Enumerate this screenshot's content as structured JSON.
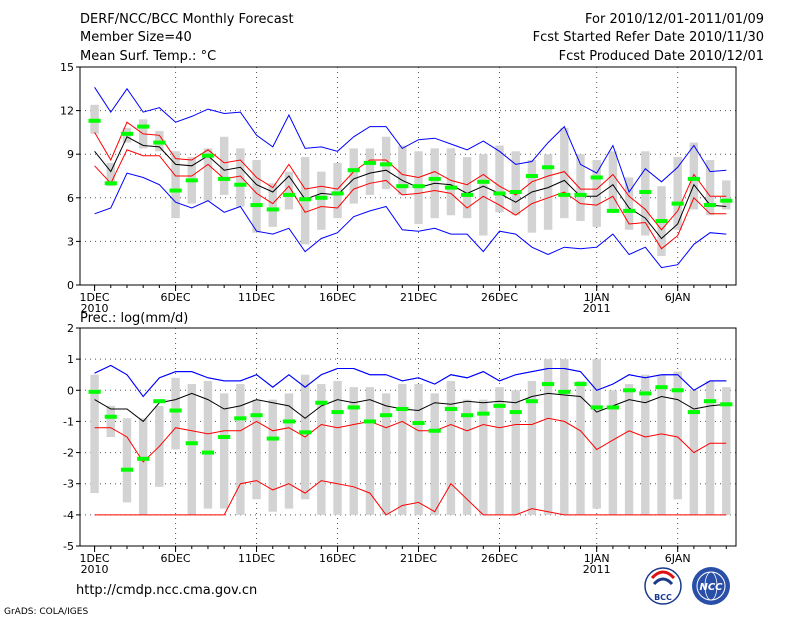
{
  "header": {
    "title": "DERF/NCC/BCC Monthly Forecast",
    "member_size": "Member Size=40",
    "period": "For 2010/12/01-2011/01/09",
    "fcst_started": "Fcst Started Refer Date 2010/11/30",
    "fcst_produced": "Fcst Produced Date 2010/12/01"
  },
  "footer": {
    "url": "http://cmdp.ncc.cma.gov.cn",
    "credit": "GrADS: COLA/IGES",
    "logo_bcc": "BCC",
    "logo_ncc": "NCC"
  },
  "colors": {
    "box": "#d3d3d3",
    "median": "#00ff00",
    "mean": "#000000",
    "spread": "#ff0000",
    "extreme": "#0000ff",
    "grid": "#555555"
  },
  "chart_data": [
    {
      "type": "box",
      "name": "temperature",
      "ylabel": "Mean Surf. Temp.: °C",
      "ylim": [
        0,
        15
      ],
      "yticks": [
        0,
        3,
        6,
        9,
        12,
        15
      ],
      "grid": true,
      "day_count": 40,
      "xtick_days": [
        1,
        6,
        11,
        16,
        21,
        26,
        32,
        37
      ],
      "xtick_labels": [
        "1DEC",
        "6DEC",
        "11DEC",
        "16DEC",
        "21DEC",
        "26DEC",
        "1JAN",
        "6JAN"
      ],
      "xtick_years": [
        {
          "day": 1,
          "label": "2010"
        },
        {
          "day": 32,
          "label": "2011"
        }
      ],
      "box_low": [
        10.4,
        6.8,
        9.8,
        9.4,
        9.2,
        4.6,
        5.6,
        5.8,
        6.2,
        5.4,
        3.6,
        4.0,
        5.2,
        2.8,
        3.8,
        4.6,
        5.6,
        6.2,
        6.6,
        6.2,
        4.2,
        4.6,
        4.8,
        4.6,
        3.4,
        5.0,
        4.8,
        3.6,
        3.8,
        4.6,
        4.4,
        4.0,
        5.2,
        3.8,
        3.4,
        2.0,
        3.8,
        5.2,
        4.8,
        5.2
      ],
      "box_high": [
        12.4,
        8.4,
        10.8,
        11.4,
        10.6,
        9.2,
        8.8,
        9.4,
        10.2,
        9.4,
        8.6,
        7.0,
        7.8,
        8.8,
        7.8,
        8.4,
        9.4,
        9.4,
        10.2,
        9.6,
        9.2,
        9.4,
        9.4,
        8.8,
        9.0,
        9.6,
        9.2,
        8.6,
        9.0,
        10.8,
        9.0,
        8.6,
        9.2,
        7.4,
        9.2,
        6.8,
        8.8,
        9.8,
        8.6,
        7.2
      ],
      "median": [
        11.3,
        7.0,
        10.4,
        10.9,
        9.8,
        6.5,
        7.2,
        8.9,
        7.3,
        6.9,
        5.5,
        5.2,
        6.2,
        5.9,
        6.0,
        6.3,
        7.9,
        8.4,
        8.3,
        6.8,
        6.8,
        7.3,
        6.7,
        6.2,
        7.1,
        6.3,
        6.4,
        7.5,
        8.1,
        6.2,
        6.2,
        7.4,
        5.1,
        5.1,
        6.4,
        4.4,
        5.6,
        7.3,
        5.5,
        5.8
      ],
      "mean": [
        9.2,
        7.8,
        10.2,
        9.6,
        9.5,
        8.3,
        8.2,
        8.9,
        7.9,
        8.1,
        6.9,
        6.4,
        7.5,
        5.9,
        6.3,
        6.2,
        7.3,
        7.7,
        7.9,
        7.2,
        6.7,
        7.0,
        6.9,
        6.3,
        6.8,
        6.3,
        5.7,
        6.4,
        6.7,
        7.2,
        6.1,
        6.1,
        6.9,
        5.3,
        4.6,
        3.2,
        4.2,
        6.9,
        5.5,
        5.4
      ],
      "upper": [
        10.5,
        8.6,
        11.2,
        10.4,
        10.3,
        8.7,
        8.6,
        9.3,
        8.4,
        8.6,
        7.4,
        6.7,
        8.3,
        6.6,
        6.8,
        6.6,
        7.8,
        8.6,
        8.6,
        7.6,
        7.4,
        7.8,
        7.2,
        6.9,
        7.6,
        6.8,
        6.2,
        7.1,
        7.5,
        7.8,
        6.6,
        6.6,
        7.6,
        6.1,
        5.2,
        3.8,
        5.1,
        7.6,
        6.1,
        6.1
      ],
      "lower": [
        8.2,
        7.0,
        9.3,
        8.9,
        8.9,
        7.5,
        7.5,
        8.3,
        7.3,
        7.5,
        6.3,
        5.6,
        6.8,
        5.0,
        5.4,
        5.3,
        6.6,
        7.0,
        7.2,
        6.2,
        6.3,
        6.5,
        6.3,
        5.3,
        6.1,
        5.5,
        4.8,
        5.6,
        6.0,
        6.4,
        5.6,
        5.5,
        6.1,
        4.2,
        4.3,
        2.5,
        3.4,
        6.0,
        4.9,
        4.9
      ],
      "max": [
        13.6,
        11.9,
        13.5,
        11.9,
        12.2,
        11.2,
        11.6,
        12.1,
        11.8,
        11.9,
        10.3,
        9.5,
        11.7,
        9.4,
        9.5,
        9.2,
        10.2,
        10.9,
        10.9,
        9.4,
        10.0,
        10.1,
        9.7,
        9.3,
        9.9,
        9.2,
        8.3,
        8.5,
        9.8,
        10.9,
        8.3,
        7.7,
        9.6,
        6.4,
        8.0,
        7.1,
        8.1,
        9.6,
        7.8,
        7.9
      ],
      "min": [
        4.9,
        5.3,
        7.7,
        7.4,
        6.9,
        5.7,
        5.3,
        5.8,
        5.0,
        5.4,
        3.7,
        3.5,
        3.9,
        2.3,
        3.2,
        3.6,
        4.7,
        5.1,
        5.4,
        3.8,
        3.7,
        3.9,
        3.5,
        3.5,
        2.3,
        3.7,
        3.5,
        2.6,
        2.1,
        2.6,
        2.5,
        2.6,
        3.5,
        2.1,
        2.6,
        1.2,
        1.4,
        2.8,
        3.6,
        3.5
      ]
    },
    {
      "type": "box",
      "name": "precipitation",
      "ylabel": "Prec.: log(mm/d)",
      "ylim": [
        -5,
        2
      ],
      "yticks": [
        -5,
        -4,
        -3,
        -2,
        -1,
        0,
        1,
        2
      ],
      "grid": true,
      "day_count": 40,
      "xtick_days": [
        1,
        6,
        11,
        16,
        21,
        26,
        32,
        37
      ],
      "xtick_labels": [
        "1DEC",
        "6DEC",
        "11DEC",
        "16DEC",
        "21DEC",
        "26DEC",
        "1JAN",
        "6JAN"
      ],
      "xtick_years": [
        {
          "day": 1,
          "label": "2010"
        },
        {
          "day": 32,
          "label": "2011"
        }
      ],
      "box_low": [
        -3.3,
        -1.5,
        -3.6,
        -4.0,
        -3.1,
        -1.9,
        -4.0,
        -3.8,
        -3.8,
        -4.0,
        -3.5,
        -3.9,
        -3.8,
        -3.5,
        -4.0,
        -4.0,
        -4.0,
        -4.0,
        -4.0,
        -4.0,
        -4.0,
        -4.0,
        -4.0,
        -4.0,
        -4.0,
        -4.0,
        -4.0,
        -4.0,
        -4.0,
        -4.0,
        -4.0,
        -3.8,
        -4.0,
        -4.0,
        -4.0,
        -4.0,
        -3.5,
        -4.0,
        -4.0,
        -4.0
      ],
      "box_high": [
        0.5,
        -0.5,
        -0.9,
        -0.9,
        -0.5,
        0.4,
        0.2,
        0.3,
        -0.1,
        0.2,
        -0.3,
        -0.3,
        -0.1,
        0.5,
        0.2,
        0.3,
        0.1,
        0.1,
        -0.1,
        0.2,
        0.2,
        -0.1,
        0.3,
        -0.3,
        -0.3,
        0.1,
        0.0,
        0.3,
        1.0,
        1.0,
        0.3,
        1.0,
        0.0,
        0.2,
        0.5,
        0.5,
        0.6,
        0.0,
        0.3,
        0.1
      ],
      "median": [
        -0.05,
        -0.85,
        -2.55,
        -2.2,
        -0.35,
        -0.65,
        -1.7,
        -2.0,
        -1.5,
        -0.9,
        -0.8,
        -1.55,
        -1.0,
        -1.35,
        -0.4,
        -0.7,
        -0.55,
        -1.0,
        -0.8,
        -0.6,
        -1.05,
        -1.3,
        -0.6,
        -0.8,
        -0.75,
        -0.5,
        -0.7,
        -0.35,
        0.2,
        -0.05,
        0.2,
        -0.55,
        -0.55,
        0.0,
        -0.1,
        0.1,
        0.0,
        -0.7,
        -0.35,
        -0.45
      ],
      "mean": [
        -0.3,
        -0.6,
        -0.6,
        -1.0,
        -0.4,
        -0.3,
        -0.1,
        -0.3,
        -0.6,
        -0.5,
        -0.3,
        -0.4,
        -0.5,
        -0.9,
        -0.5,
        -0.3,
        -0.4,
        -0.3,
        -0.5,
        -0.6,
        -0.65,
        -0.4,
        -0.45,
        -0.35,
        -0.4,
        -0.35,
        -0.4,
        -0.2,
        -0.1,
        -0.15,
        -0.2,
        -0.7,
        -0.5,
        -0.3,
        -0.4,
        -0.2,
        -0.3,
        -0.6,
        -0.5,
        -0.45
      ],
      "upper": [
        0.55,
        0.8,
        0.5,
        -0.2,
        0.4,
        0.6,
        0.6,
        0.4,
        0.3,
        0.3,
        0.5,
        0.1,
        0.5,
        0.1,
        0.5,
        0.7,
        0.7,
        0.5,
        0.5,
        0.3,
        0.4,
        0.2,
        0.5,
        0.4,
        0.6,
        0.3,
        0.5,
        0.6,
        0.7,
        0.7,
        0.6,
        0.0,
        0.2,
        0.5,
        0.4,
        0.5,
        0.5,
        0.0,
        0.3,
        0.3
      ],
      "lower": [
        -1.2,
        -1.2,
        -1.5,
        -2.3,
        -1.8,
        -1.2,
        -1.3,
        -1.4,
        -1.3,
        -1.3,
        -1.0,
        -1.3,
        -1.2,
        -1.5,
        -1.1,
        -1.2,
        -1.1,
        -1.0,
        -1.2,
        -1.0,
        -1.3,
        -1.3,
        -1.1,
        -1.3,
        -1.1,
        -1.2,
        -1.1,
        -1.1,
        -0.9,
        -1.0,
        -1.3,
        -1.9,
        -1.6,
        -1.3,
        -1.5,
        -1.4,
        -1.5,
        -2.0,
        -1.7,
        -1.7
      ],
      "min": [
        -4.0,
        -4.0,
        -4.0,
        -4.0,
        -4.0,
        -4.0,
        -4.0,
        -4.0,
        -4.0,
        -3.0,
        -2.9,
        -3.2,
        -3.0,
        -3.3,
        -2.9,
        -3.0,
        -3.1,
        -3.3,
        -4.0,
        -3.7,
        -3.6,
        -3.9,
        -3.0,
        -3.5,
        -4.0,
        -4.0,
        -4.0,
        -3.8,
        -3.9,
        -4.0,
        -4.0,
        -4.0,
        -4.0,
        -4.0,
        -4.0,
        -4.0,
        -4.0,
        -4.0,
        -4.0,
        -4.0
      ]
    }
  ]
}
